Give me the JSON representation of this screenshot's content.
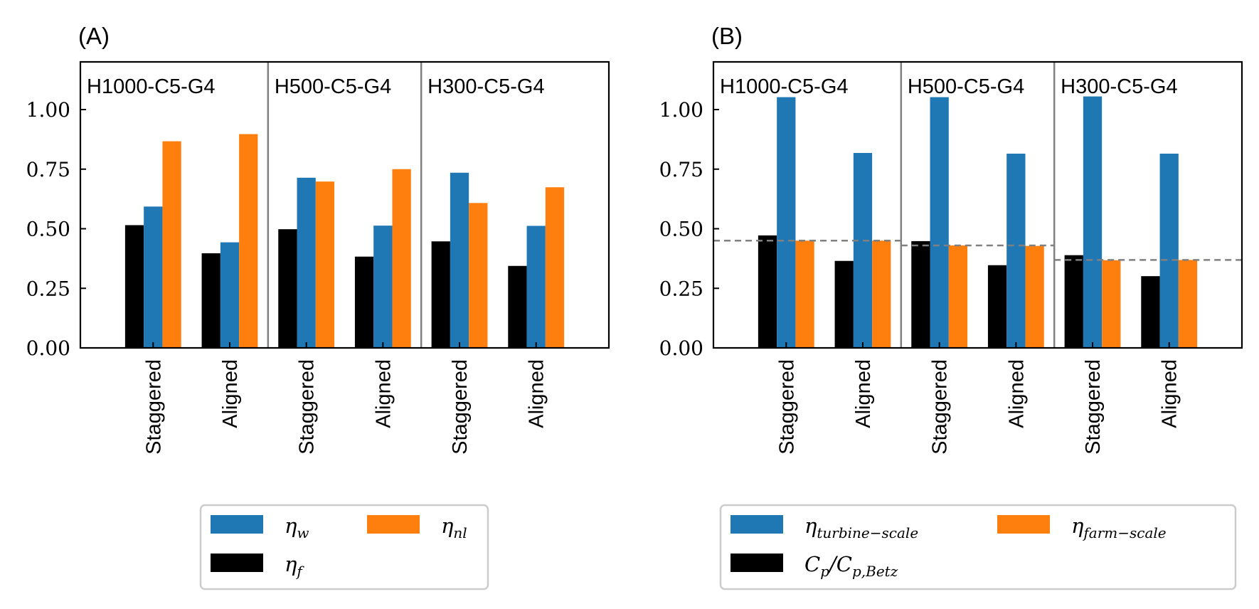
{
  "chart_data": [
    {
      "panel_label": "(A)",
      "type": "bar",
      "categories": [
        "Staggered",
        "Aligned",
        "Staggered",
        "Aligned",
        "Staggered",
        "Aligned"
      ],
      "groups": [
        "H1000-C5-G4",
        "H500-C5-G4",
        "H300-C5-G4"
      ],
      "series": [
        {
          "name": "η_f",
          "legend_main": "η",
          "legend_sub": "f",
          "color": "#000000",
          "values": [
            0.515,
            0.397,
            0.498,
            0.383,
            0.447,
            0.344
          ]
        },
        {
          "name": "η_w",
          "legend_main": "η",
          "legend_sub": "w",
          "color": "#1f77b4",
          "values": [
            0.593,
            0.443,
            0.714,
            0.513,
            0.735,
            0.512
          ]
        },
        {
          "name": "η_nl",
          "legend_main": "η",
          "legend_sub": "nl",
          "color": "#ff7f0e",
          "values": [
            0.867,
            0.897,
            0.698,
            0.75,
            0.608,
            0.674
          ]
        }
      ],
      "legend_order": [
        1,
        2,
        0
      ],
      "ylim": [
        0,
        1.2
      ],
      "yticks": [
        "0.00",
        "0.25",
        "0.50",
        "0.75",
        "1.00"
      ],
      "reference_lines": []
    },
    {
      "panel_label": "(B)",
      "type": "bar",
      "categories": [
        "Staggered",
        "Aligned",
        "Staggered",
        "Aligned",
        "Staggered",
        "Aligned"
      ],
      "groups": [
        "H1000-C5-G4",
        "H500-C5-G4",
        "H300-C5-G4"
      ],
      "series": [
        {
          "name": "C_p/C_p,Betz",
          "legend_main": "C",
          "legend_sub": "p",
          "legend_main2": "/C",
          "legend_sub2": "p,Betz",
          "color": "#000000",
          "values": [
            0.472,
            0.365,
            0.448,
            0.347,
            0.389,
            0.301
          ]
        },
        {
          "name": "η_turbine-scale",
          "legend_main": "η",
          "legend_sub": "turbine−scale",
          "color": "#1f77b4",
          "values": [
            1.052,
            0.818,
            1.052,
            0.815,
            1.055,
            0.815
          ]
        },
        {
          "name": "η_farm-scale",
          "legend_main": "η",
          "legend_sub": "farm−scale",
          "color": "#ff7f0e",
          "values": [
            0.45,
            0.45,
            0.43,
            0.428,
            0.368,
            0.369
          ]
        }
      ],
      "legend_order": [
        1,
        2,
        0
      ],
      "ylim": [
        0,
        1.2
      ],
      "yticks": [
        "0.00",
        "0.25",
        "0.50",
        "0.75",
        "1.00"
      ],
      "reference_lines": [
        0.45,
        0.43,
        0.369
      ]
    }
  ],
  "colors": {
    "divider": "#808080",
    "dashed_line": "#808080",
    "legend_border": "#cccccc"
  }
}
